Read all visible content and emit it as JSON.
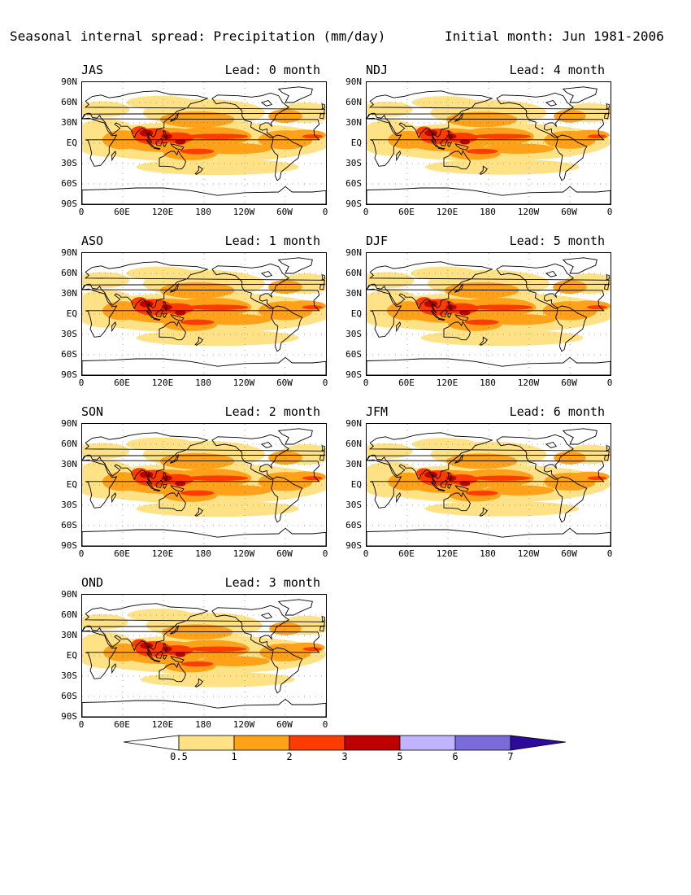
{
  "header": {
    "title": "Seasonal internal spread: Precipitation (mm/day)",
    "initial_month": "Initial month: Jun 1981-2006"
  },
  "axes": {
    "y_ticks": [
      "90N",
      "60N",
      "30N",
      "EQ",
      "30S",
      "60S",
      "90S"
    ],
    "x_ticks": [
      "0",
      "60E",
      "120E",
      "180",
      "120W",
      "60W",
      "0"
    ]
  },
  "colors": {
    "below_05": "#ffffff",
    "c05_1": "#ffe285",
    "c1_2": "#ffa21a",
    "c2_3": "#ff3c00",
    "c3_5": "#bd0000",
    "c5_6": "#c1b4ff",
    "c6_7": "#7b6bda",
    "above_7": "#2e0a9c",
    "coast": "#000000"
  },
  "colorbar": {
    "ticks": [
      "0.5",
      "1",
      "2",
      "3",
      "5",
      "6",
      "7"
    ]
  },
  "chart_data": [
    {
      "type": "heatmap",
      "season": "JAS",
      "lead": "Lead: 0 month",
      "intensity": 1.0
    },
    {
      "type": "heatmap",
      "season": "ASO",
      "lead": "Lead: 1 month",
      "intensity": 1.0
    },
    {
      "type": "heatmap",
      "season": "SON",
      "lead": "Lead: 2 month",
      "intensity": 1.0
    },
    {
      "type": "heatmap",
      "season": "OND",
      "lead": "Lead: 3 month",
      "intensity": 0.95
    },
    {
      "type": "heatmap",
      "season": "NDJ",
      "lead": "Lead: 4 month",
      "intensity": 0.95
    },
    {
      "type": "heatmap",
      "season": "DJF",
      "lead": "Lead: 5 month",
      "intensity": 1.0
    },
    {
      "type": "heatmap",
      "season": "JFM",
      "lead": "Lead: 6 month",
      "intensity": 0.95
    }
  ]
}
